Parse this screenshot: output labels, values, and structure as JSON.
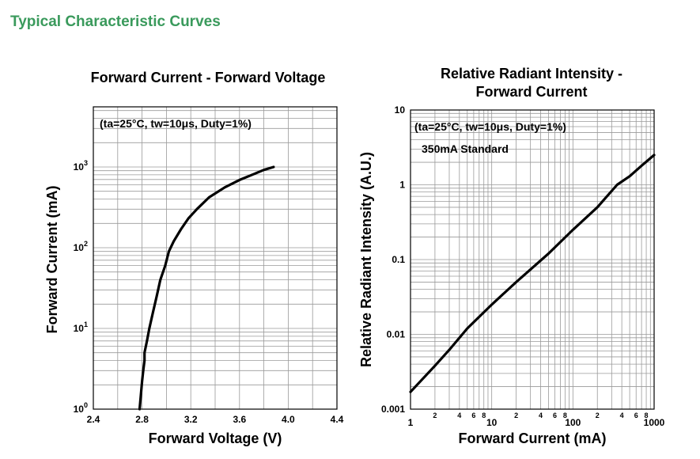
{
  "page": {
    "title": "Typical Characteristic Curves"
  },
  "chart_data": [
    {
      "type": "line",
      "title": "Forward Current - Forward Voltage",
      "xlabel": "Forward Voltage (V)",
      "ylabel": "Forward Current (mA)",
      "annotations": [
        "(ta=25°C, tw=10μs, Duty=1%)"
      ],
      "xscale": "linear",
      "yscale": "log",
      "xlim": [
        2.4,
        4.4
      ],
      "ylim": [
        1,
        5000
      ],
      "grid": true,
      "x_ticks": [
        "2.4",
        "2.8",
        "3.2",
        "3.6",
        "4.0",
        "4.4"
      ],
      "x_tick_values": [
        2.4,
        2.8,
        3.2,
        3.6,
        4.0,
        4.4
      ],
      "y_ticks": [
        {
          "value": 1,
          "base": "10",
          "exp": "0"
        },
        {
          "value": 10,
          "base": "10",
          "exp": "1"
        },
        {
          "value": 100,
          "base": "10",
          "exp": "2"
        },
        {
          "value": 1000,
          "base": "10",
          "exp": "3"
        }
      ],
      "series": [
        {
          "x": [
            2.78,
            2.79,
            2.8,
            2.81,
            2.82,
            2.82,
            2.84,
            2.86,
            2.89,
            2.92,
            2.95,
            2.99,
            3.02,
            3.06,
            3.12,
            3.18,
            3.25,
            3.35,
            3.48,
            3.6,
            3.72,
            3.8,
            3.88
          ],
          "y": [
            1,
            1.5,
            2.2,
            3,
            4,
            5,
            7,
            10,
            16,
            25,
            40,
            60,
            90,
            120,
            170,
            230,
            300,
            420,
            560,
            690,
            820,
            920,
            1000
          ]
        }
      ]
    },
    {
      "type": "line",
      "title": "Relative Radiant Intensity - Forward Current",
      "xlabel": "Forward Current (mA)",
      "ylabel": "Relative Radiant Intensity (A.U.)",
      "annotations": [
        "(ta=25°C, tw=10μs, Duty=1%)",
        "350mA Standard"
      ],
      "xscale": "log",
      "yscale": "log",
      "xlim": [
        1,
        1000
      ],
      "ylim": [
        0.001,
        10
      ],
      "grid": true,
      "x_ticks": [
        {
          "value": 1,
          "label": "1"
        },
        {
          "value": 10,
          "label": "10"
        },
        {
          "value": 100,
          "label": "100"
        },
        {
          "value": 1000,
          "label": "1000"
        }
      ],
      "x_minor_ticks": [
        {
          "value": 2,
          "label": "2"
        },
        {
          "value": 4,
          "label": "4"
        },
        {
          "value": 6,
          "label": "6"
        },
        {
          "value": 8,
          "label": "8"
        },
        {
          "value": 20,
          "label": "2"
        },
        {
          "value": 40,
          "label": "4"
        },
        {
          "value": 60,
          "label": "6"
        },
        {
          "value": 80,
          "label": "8"
        },
        {
          "value": 200,
          "label": "2"
        },
        {
          "value": 400,
          "label": "4"
        },
        {
          "value": 600,
          "label": "6"
        },
        {
          "value": 800,
          "label": "8"
        }
      ],
      "y_ticks": [
        {
          "value": 0.001,
          "label": "0.001"
        },
        {
          "value": 0.01,
          "label": "0.01"
        },
        {
          "value": 0.1,
          "label": "0.1"
        },
        {
          "value": 1,
          "label": "1"
        },
        {
          "value": 10,
          "label": "10"
        }
      ],
      "series": [
        {
          "x": [
            1,
            2,
            3,
            5,
            10,
            20,
            50,
            100,
            200,
            350,
            500,
            700,
            1000
          ],
          "y": [
            0.0017,
            0.0038,
            0.0062,
            0.012,
            0.025,
            0.05,
            0.12,
            0.25,
            0.5,
            1.0,
            1.3,
            1.8,
            2.5
          ]
        }
      ]
    }
  ]
}
